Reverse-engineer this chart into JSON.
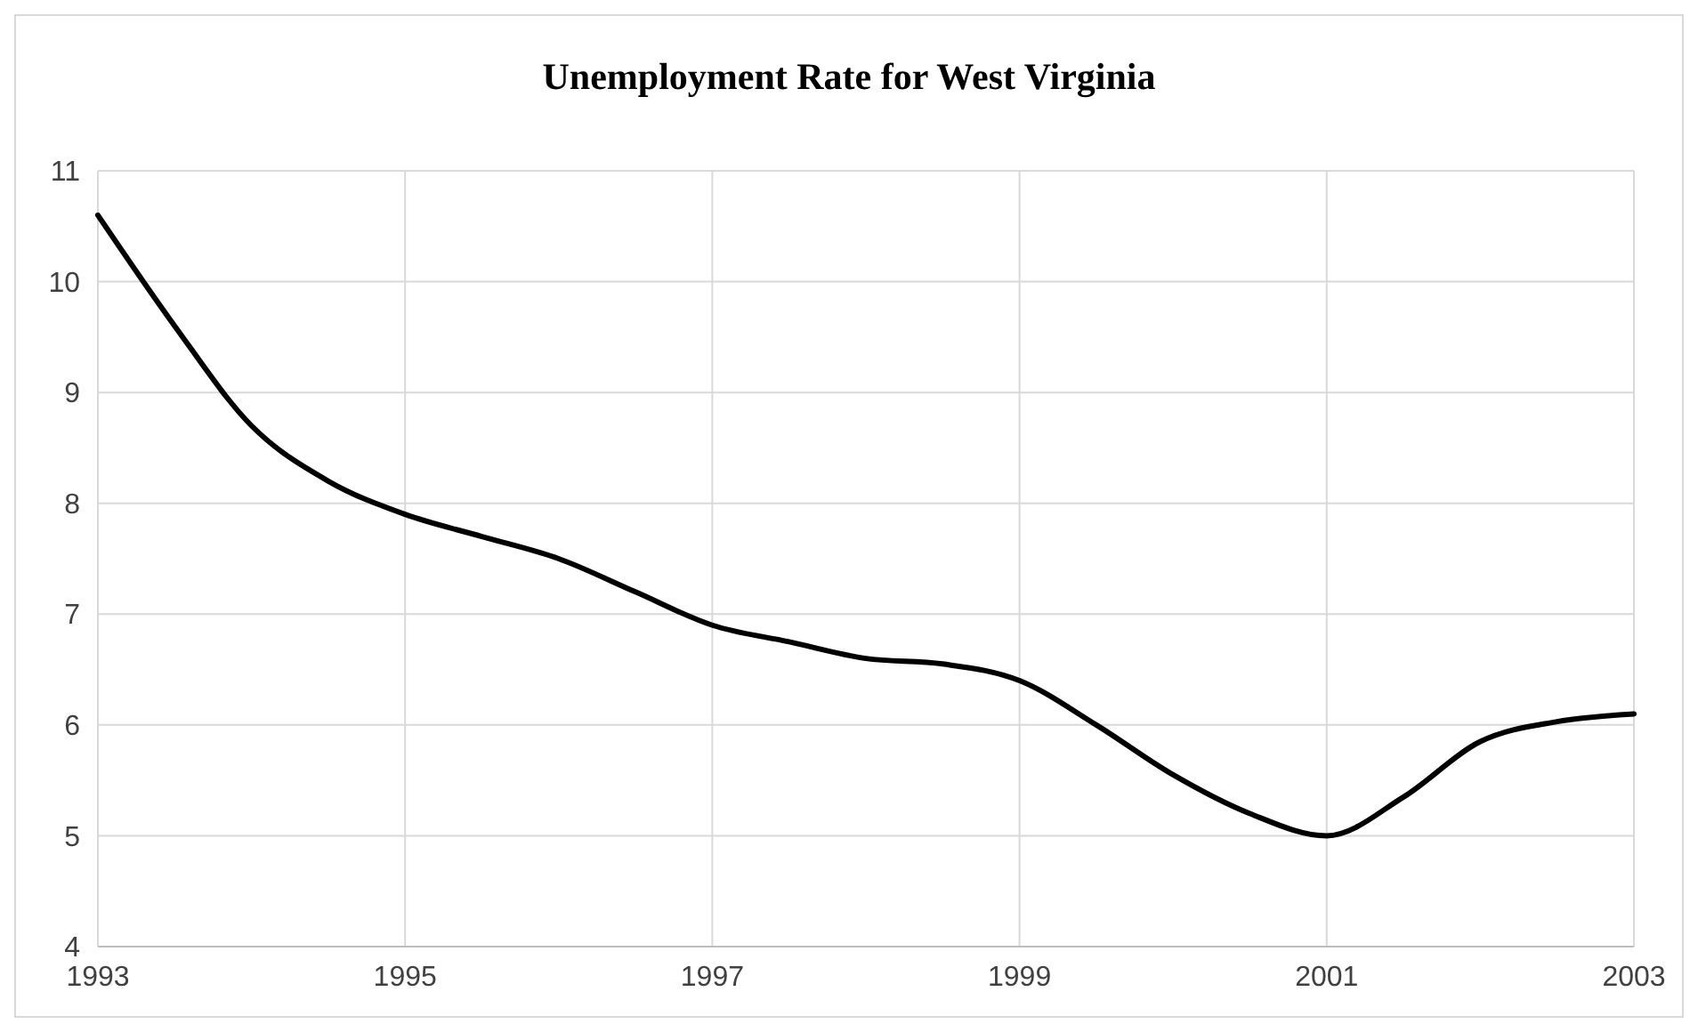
{
  "chart_data": {
    "type": "line",
    "title": "Unemployment Rate for West Virginia",
    "x": [
      1993,
      1993.5,
      1994,
      1994.5,
      1995,
      1995.5,
      1996,
      1996.5,
      1997,
      1997.5,
      1998,
      1998.5,
      1999,
      1999.5,
      2000,
      2000.5,
      2001,
      2001.5,
      2002,
      2002.5,
      2003
    ],
    "series": [
      {
        "color": "#000000",
        "values": [
          10.6,
          9.6,
          8.7,
          8.2,
          7.9,
          7.7,
          7.5,
          7.2,
          6.9,
          6.75,
          6.6,
          6.55,
          6.4,
          6.0,
          5.55,
          5.2,
          5.0,
          5.35,
          5.85,
          6.03,
          6.1
        ]
      }
    ],
    "xlim": [
      1993,
      2003
    ],
    "xticks": [
      1993,
      1995,
      1997,
      1999,
      2001,
      2003
    ],
    "ylim": [
      4,
      11
    ],
    "yticks": [
      4,
      5,
      6,
      7,
      8,
      9,
      10,
      11
    ],
    "grid": true,
    "marker": "none",
    "line_style": "solid"
  }
}
